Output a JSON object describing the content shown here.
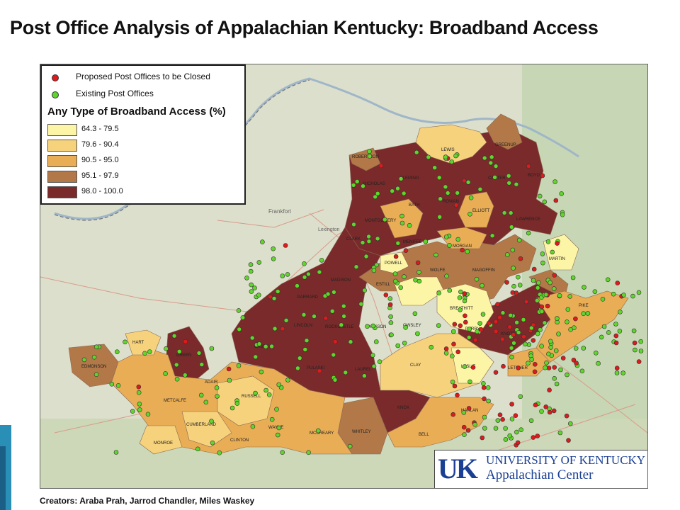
{
  "title": "Post Office Analysis of Appalachian Kentucky: Broadband Access",
  "legend": {
    "closed_label": "Proposed Post Offices to be Closed",
    "existing_label": "Existing Post Offices",
    "heading": "Any Type of Broadband Access (%)",
    "classes": [
      {
        "label": "64.3 - 79.5",
        "color": "#fdf5a6"
      },
      {
        "label": "79.6 - 90.4",
        "color": "#f6d27c"
      },
      {
        "label": "90.5 - 95.0",
        "color": "#e9ad55"
      },
      {
        "label": "95.1 - 97.9",
        "color": "#b27847"
      },
      {
        "label": "98.0 - 100.0",
        "color": "#7a2a2a"
      }
    ],
    "closed_color": "#e0191c",
    "existing_color": "#5fd62b"
  },
  "basemap_labels": {
    "frankfort": "Frankfort",
    "lexington": "Lexington"
  },
  "counties": {
    "lewis": "LEWIS",
    "greenup": "GREENUP",
    "boyd": "BOYD",
    "carter": "CARTER",
    "fleming": "FLEMING",
    "nicholas": "NICHOLAS",
    "robertson": "ROBERTSON",
    "rowan": "ROWAN",
    "bath": "BATH",
    "elliott": "ELLIOTT",
    "lawrence": "LAWRENCE",
    "montgomery": "MONTGOMERY",
    "menifee": "MENIFEE",
    "morgan": "MORGAN",
    "martin": "MARTIN",
    "powell": "POWELL",
    "wolfe": "WOLFE",
    "magoffin": "MAGOFFIN",
    "clark": "CLARK",
    "estill": "ESTILL",
    "breathitt": "BREATHITT",
    "pike": "PIKE",
    "madison": "MADISON",
    "garrard": "GARRARD",
    "lincoln": "LINCOLN",
    "rockcastle": "ROCKCASTLE",
    "jackson": "JACKSON",
    "owsley": "OWSLEY",
    "perry": "PERRY",
    "knott": "KNOTT",
    "letcher": "LETCHER",
    "leslie": "LESLIE",
    "clay": "CLAY",
    "laurel": "LAUREL",
    "pulaski": "PULASKI",
    "casey": "CASEY",
    "hart": "HART",
    "green": "GREEN",
    "edmonson": "EDMONSON",
    "adair": "ADAIR",
    "russell": "RUSSELL",
    "metcalfe": "METCALFE",
    "cumberland": "CUMBERLAND",
    "monroe": "MONROE",
    "clinton": "CLINTON",
    "wayne": "WAYNE",
    "mccreary": "MCCREARY",
    "whitley": "WHITLEY",
    "bell": "BELL",
    "harlan": "HARLAN",
    "knox": "KNOX"
  },
  "logo": {
    "mark": "UK",
    "line1": "UNIVERSITY OF KENTUCKY",
    "line2": "Appalachian Center"
  },
  "creators": "Creators: Araba Prah, Jarrod Chandler, Miles Waskey"
}
